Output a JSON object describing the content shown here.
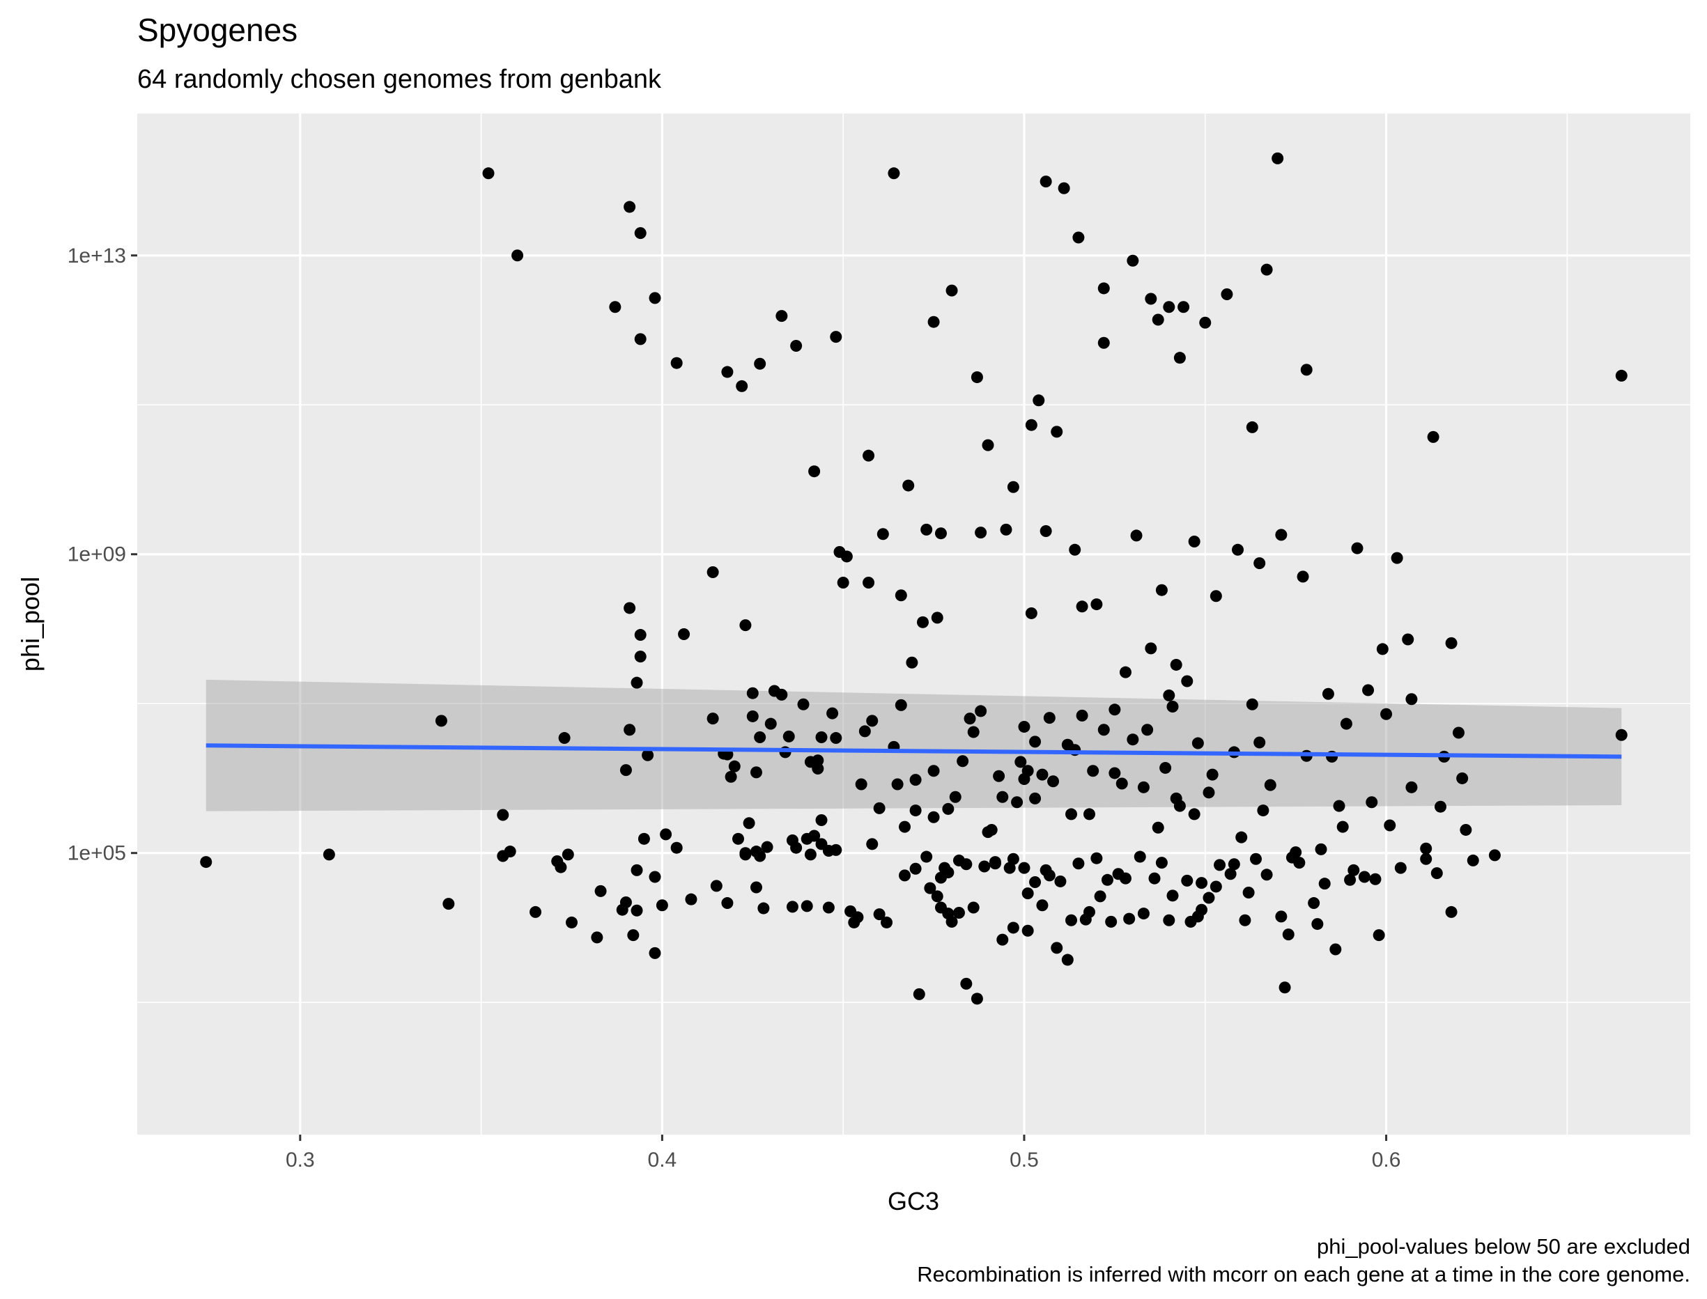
{
  "chart_data": {
    "type": "scatter",
    "title": "Spyogenes",
    "subtitle": "64 randomly chosen genomes from genbank",
    "xlabel": "GC3",
    "ylabel": "phi_pool",
    "caption_lines": [
      "phi_pool-values below 50 are excluded",
      "Recombination is inferred with mcorr on each gene at a time in the core genome."
    ],
    "x_scale": "linear",
    "y_scale": "log10",
    "xlim": [
      0.255,
      0.684
    ],
    "ylim_log10": [
      1.23,
      14.9
    ],
    "x_ticks": [
      0.3,
      0.4,
      0.5,
      0.6
    ],
    "x_tick_labels": [
      "0.3",
      "0.4",
      "0.5",
      "0.6"
    ],
    "y_ticks_log10": [
      5,
      9,
      13
    ],
    "y_tick_labels": [
      "1e+05",
      "1e+09",
      "1e+13"
    ],
    "grid": true,
    "legend": "none",
    "point_color": "#000000",
    "panel_color": "#ebebeb",
    "smooth": {
      "method": "linear",
      "color": "#3366ff",
      "band_color": "#999999",
      "x": [
        0.274,
        0.665
      ],
      "log10_y": [
        6.44,
        6.29
      ],
      "band_low_log10": [
        5.56,
        5.64
      ],
      "band_high_log10": [
        7.32,
        6.94
      ]
    },
    "points_log10": [
      [
        0.274,
        4.88
      ],
      [
        0.308,
        4.98
      ],
      [
        0.339,
        6.77
      ],
      [
        0.341,
        4.32
      ],
      [
        0.352,
        14.1
      ],
      [
        0.356,
        5.51
      ],
      [
        0.356,
        4.96
      ],
      [
        0.358,
        5.02
      ],
      [
        0.36,
        13.0
      ],
      [
        0.365,
        4.21
      ],
      [
        0.371,
        4.89
      ],
      [
        0.372,
        4.81
      ],
      [
        0.373,
        6.54
      ],
      [
        0.374,
        4.98
      ],
      [
        0.375,
        4.07
      ],
      [
        0.382,
        3.87
      ],
      [
        0.383,
        4.49
      ],
      [
        0.387,
        12.31
      ],
      [
        0.389,
        4.24
      ],
      [
        0.39,
        4.34
      ],
      [
        0.39,
        6.11
      ],
      [
        0.391,
        13.65
      ],
      [
        0.391,
        8.28
      ],
      [
        0.391,
        6.65
      ],
      [
        0.392,
        3.9
      ],
      [
        0.393,
        4.77
      ],
      [
        0.393,
        4.23
      ],
      [
        0.393,
        7.28
      ],
      [
        0.394,
        13.3
      ],
      [
        0.394,
        7.63
      ],
      [
        0.394,
        7.92
      ],
      [
        0.394,
        11.88
      ],
      [
        0.395,
        5.19
      ],
      [
        0.396,
        6.31
      ],
      [
        0.398,
        4.68
      ],
      [
        0.398,
        12.43
      ],
      [
        0.398,
        3.66
      ],
      [
        0.4,
        4.3
      ],
      [
        0.401,
        5.25
      ],
      [
        0.404,
        5.07
      ],
      [
        0.404,
        11.56
      ],
      [
        0.406,
        7.93
      ],
      [
        0.408,
        4.38
      ],
      [
        0.414,
        6.8
      ],
      [
        0.414,
        8.76
      ],
      [
        0.415,
        4.56
      ],
      [
        0.417,
        6.33
      ],
      [
        0.418,
        6.32
      ],
      [
        0.418,
        4.33
      ],
      [
        0.418,
        11.44
      ],
      [
        0.419,
        6.02
      ],
      [
        0.42,
        6.16
      ],
      [
        0.421,
        5.19
      ],
      [
        0.422,
        11.25
      ],
      [
        0.423,
        5.0
      ],
      [
        0.423,
        8.05
      ],
      [
        0.423,
        4.98
      ],
      [
        0.424,
        5.4
      ],
      [
        0.425,
        7.14
      ],
      [
        0.425,
        6.83
      ],
      [
        0.426,
        5.02
      ],
      [
        0.426,
        6.08
      ],
      [
        0.426,
        4.54
      ],
      [
        0.427,
        6.55
      ],
      [
        0.427,
        4.96
      ],
      [
        0.427,
        11.55
      ],
      [
        0.428,
        4.26
      ],
      [
        0.429,
        5.08
      ],
      [
        0.43,
        6.73
      ],
      [
        0.431,
        7.17
      ],
      [
        0.433,
        7.12
      ],
      [
        0.433,
        12.19
      ],
      [
        0.434,
        6.35
      ],
      [
        0.435,
        6.56
      ],
      [
        0.436,
        5.17
      ],
      [
        0.436,
        4.28
      ],
      [
        0.437,
        11.79
      ],
      [
        0.437,
        5.07
      ],
      [
        0.439,
        6.99
      ],
      [
        0.44,
        4.29
      ],
      [
        0.44,
        5.19
      ],
      [
        0.441,
        6.22
      ],
      [
        0.441,
        4.98
      ],
      [
        0.442,
        5.23
      ],
      [
        0.442,
        10.11
      ],
      [
        0.443,
        6.24
      ],
      [
        0.443,
        6.13
      ],
      [
        0.444,
        5.44
      ],
      [
        0.444,
        5.12
      ],
      [
        0.444,
        6.55
      ],
      [
        0.446,
        4.27
      ],
      [
        0.446,
        5.03
      ],
      [
        0.447,
        6.87
      ],
      [
        0.448,
        11.91
      ],
      [
        0.448,
        5.04
      ],
      [
        0.448,
        6.54
      ],
      [
        0.449,
        9.03
      ],
      [
        0.45,
        8.62
      ],
      [
        0.451,
        8.97
      ],
      [
        0.452,
        4.22
      ],
      [
        0.453,
        4.07
      ],
      [
        0.454,
        4.14
      ],
      [
        0.455,
        5.92
      ],
      [
        0.456,
        6.63
      ],
      [
        0.457,
        10.32
      ],
      [
        0.457,
        8.62
      ],
      [
        0.458,
        5.12
      ],
      [
        0.458,
        6.77
      ],
      [
        0.46,
        4.18
      ],
      [
        0.46,
        5.6
      ],
      [
        0.461,
        9.27
      ],
      [
        0.462,
        4.07
      ],
      [
        0.464,
        14.1
      ],
      [
        0.464,
        6.42
      ],
      [
        0.465,
        5.92
      ],
      [
        0.466,
        8.45
      ],
      [
        0.466,
        6.98
      ],
      [
        0.467,
        4.7
      ],
      [
        0.467,
        5.35
      ],
      [
        0.468,
        9.92
      ],
      [
        0.469,
        7.55
      ],
      [
        0.47,
        5.57
      ],
      [
        0.47,
        4.79
      ],
      [
        0.47,
        5.98
      ],
      [
        0.471,
        3.11
      ],
      [
        0.472,
        8.09
      ],
      [
        0.473,
        4.95
      ],
      [
        0.473,
        9.33
      ],
      [
        0.474,
        4.53
      ],
      [
        0.475,
        6.1
      ],
      [
        0.475,
        12.11
      ],
      [
        0.475,
        5.48
      ],
      [
        0.476,
        8.15
      ],
      [
        0.476,
        4.42
      ],
      [
        0.477,
        4.67
      ],
      [
        0.477,
        9.28
      ],
      [
        0.477,
        4.27
      ],
      [
        0.478,
        4.8
      ],
      [
        0.479,
        4.74
      ],
      [
        0.479,
        4.19
      ],
      [
        0.479,
        5.59
      ],
      [
        0.48,
        12.53
      ],
      [
        0.48,
        4.08
      ],
      [
        0.481,
        5.75
      ],
      [
        0.482,
        4.9
      ],
      [
        0.482,
        4.2
      ],
      [
        0.483,
        6.23
      ],
      [
        0.484,
        4.85
      ],
      [
        0.484,
        3.25
      ],
      [
        0.485,
        6.8
      ],
      [
        0.486,
        4.27
      ],
      [
        0.486,
        6.62
      ],
      [
        0.487,
        11.37
      ],
      [
        0.487,
        3.05
      ],
      [
        0.488,
        9.29
      ],
      [
        0.488,
        6.9
      ],
      [
        0.489,
        4.82
      ],
      [
        0.49,
        10.46
      ],
      [
        0.49,
        5.28
      ],
      [
        0.491,
        5.31
      ],
      [
        0.492,
        4.86
      ],
      [
        0.492,
        4.88
      ],
      [
        0.493,
        6.03
      ],
      [
        0.494,
        5.75
      ],
      [
        0.494,
        3.84
      ],
      [
        0.495,
        9.33
      ],
      [
        0.496,
        4.8
      ],
      [
        0.497,
        4.92
      ],
      [
        0.497,
        4.0
      ],
      [
        0.497,
        9.9
      ],
      [
        0.498,
        5.68
      ],
      [
        0.499,
        6.22
      ],
      [
        0.5,
        6.69
      ],
      [
        0.5,
        5.99
      ],
      [
        0.5,
        4.8
      ],
      [
        0.501,
        3.96
      ],
      [
        0.501,
        6.1
      ],
      [
        0.501,
        4.46
      ],
      [
        0.502,
        10.73
      ],
      [
        0.502,
        8.21
      ],
      [
        0.503,
        5.73
      ],
      [
        0.503,
        6.49
      ],
      [
        0.503,
        4.61
      ],
      [
        0.504,
        11.06
      ],
      [
        0.505,
        4.3
      ],
      [
        0.505,
        6.05
      ],
      [
        0.506,
        9.31
      ],
      [
        0.506,
        13.99
      ],
      [
        0.506,
        4.77
      ],
      [
        0.507,
        6.81
      ],
      [
        0.507,
        4.7
      ],
      [
        0.508,
        5.96
      ],
      [
        0.509,
        3.73
      ],
      [
        0.509,
        10.64
      ],
      [
        0.51,
        4.62
      ],
      [
        0.511,
        13.9
      ],
      [
        0.512,
        6.45
      ],
      [
        0.512,
        3.57
      ],
      [
        0.513,
        4.1
      ],
      [
        0.513,
        5.52
      ],
      [
        0.514,
        9.06
      ],
      [
        0.514,
        6.38
      ],
      [
        0.515,
        4.86
      ],
      [
        0.515,
        13.24
      ],
      [
        0.516,
        6.84
      ],
      [
        0.516,
        8.3
      ],
      [
        0.517,
        4.11
      ],
      [
        0.518,
        5.52
      ],
      [
        0.518,
        4.21
      ],
      [
        0.519,
        6.1
      ],
      [
        0.52,
        8.33
      ],
      [
        0.52,
        4.93
      ],
      [
        0.521,
        4.42
      ],
      [
        0.522,
        6.65
      ],
      [
        0.522,
        11.83
      ],
      [
        0.522,
        12.56
      ],
      [
        0.523,
        4.64
      ],
      [
        0.524,
        4.08
      ],
      [
        0.525,
        6.07
      ],
      [
        0.525,
        6.92
      ],
      [
        0.526,
        4.72
      ],
      [
        0.527,
        5.93
      ],
      [
        0.528,
        7.42
      ],
      [
        0.528,
        4.66
      ],
      [
        0.529,
        4.12
      ],
      [
        0.53,
        12.93
      ],
      [
        0.53,
        6.52
      ],
      [
        0.531,
        9.25
      ],
      [
        0.532,
        4.95
      ],
      [
        0.533,
        5.88
      ],
      [
        0.533,
        4.19
      ],
      [
        0.534,
        6.65
      ],
      [
        0.535,
        12.42
      ],
      [
        0.535,
        7.74
      ],
      [
        0.536,
        4.66
      ],
      [
        0.537,
        12.14
      ],
      [
        0.537,
        5.34
      ],
      [
        0.538,
        4.87
      ],
      [
        0.538,
        8.52
      ],
      [
        0.539,
        6.14
      ],
      [
        0.54,
        12.31
      ],
      [
        0.54,
        4.1
      ],
      [
        0.54,
        7.11
      ],
      [
        0.541,
        6.96
      ],
      [
        0.541,
        4.43
      ],
      [
        0.542,
        7.52
      ],
      [
        0.542,
        5.73
      ],
      [
        0.543,
        11.63
      ],
      [
        0.543,
        5.63
      ],
      [
        0.544,
        12.31
      ],
      [
        0.545,
        4.63
      ],
      [
        0.545,
        7.3
      ],
      [
        0.546,
        4.08
      ],
      [
        0.547,
        5.52
      ],
      [
        0.547,
        9.17
      ],
      [
        0.548,
        4.15
      ],
      [
        0.548,
        6.47
      ],
      [
        0.549,
        4.6
      ],
      [
        0.549,
        4.24
      ],
      [
        0.55,
        12.1
      ],
      [
        0.551,
        4.4
      ],
      [
        0.551,
        5.81
      ],
      [
        0.552,
        6.05
      ],
      [
        0.553,
        4.55
      ],
      [
        0.553,
        8.44
      ],
      [
        0.554,
        4.84
      ],
      [
        0.556,
        12.48
      ],
      [
        0.557,
        4.72
      ],
      [
        0.558,
        4.85
      ],
      [
        0.558,
        6.35
      ],
      [
        0.559,
        9.06
      ],
      [
        0.56,
        5.21
      ],
      [
        0.561,
        4.1
      ],
      [
        0.562,
        4.47
      ],
      [
        0.563,
        6.99
      ],
      [
        0.563,
        10.7
      ],
      [
        0.564,
        4.92
      ],
      [
        0.565,
        8.88
      ],
      [
        0.565,
        6.48
      ],
      [
        0.566,
        5.57
      ],
      [
        0.567,
        4.71
      ],
      [
        0.567,
        12.81
      ],
      [
        0.568,
        5.91
      ],
      [
        0.57,
        14.3
      ],
      [
        0.571,
        4.15
      ],
      [
        0.571,
        9.26
      ],
      [
        0.572,
        3.2
      ],
      [
        0.573,
        3.91
      ],
      [
        0.574,
        4.94
      ],
      [
        0.575,
        5.01
      ],
      [
        0.576,
        4.87
      ],
      [
        0.577,
        8.7
      ],
      [
        0.578,
        6.3
      ],
      [
        0.578,
        11.47
      ],
      [
        0.58,
        4.33
      ],
      [
        0.581,
        4.05
      ],
      [
        0.582,
        5.05
      ],
      [
        0.583,
        4.59
      ],
      [
        0.584,
        7.13
      ],
      [
        0.585,
        6.29
      ],
      [
        0.586,
        3.71
      ],
      [
        0.587,
        5.63
      ],
      [
        0.588,
        5.35
      ],
      [
        0.589,
        6.73
      ],
      [
        0.59,
        4.64
      ],
      [
        0.591,
        4.77
      ],
      [
        0.592,
        9.08
      ],
      [
        0.594,
        4.68
      ],
      [
        0.595,
        7.18
      ],
      [
        0.596,
        5.68
      ],
      [
        0.597,
        4.65
      ],
      [
        0.598,
        3.9
      ],
      [
        0.599,
        7.73
      ],
      [
        0.6,
        6.86
      ],
      [
        0.601,
        5.37
      ],
      [
        0.603,
        8.95
      ],
      [
        0.604,
        4.8
      ],
      [
        0.606,
        7.86
      ],
      [
        0.607,
        5.88
      ],
      [
        0.607,
        7.06
      ],
      [
        0.611,
        5.06
      ],
      [
        0.611,
        4.92
      ],
      [
        0.613,
        10.57
      ],
      [
        0.614,
        4.73
      ],
      [
        0.615,
        5.62
      ],
      [
        0.616,
        6.29
      ],
      [
        0.618,
        7.81
      ],
      [
        0.618,
        4.21
      ],
      [
        0.62,
        6.61
      ],
      [
        0.621,
        6.0
      ],
      [
        0.622,
        5.31
      ],
      [
        0.624,
        4.9
      ],
      [
        0.63,
        4.97
      ],
      [
        0.665,
        6.58
      ],
      [
        0.665,
        11.39
      ]
    ]
  }
}
